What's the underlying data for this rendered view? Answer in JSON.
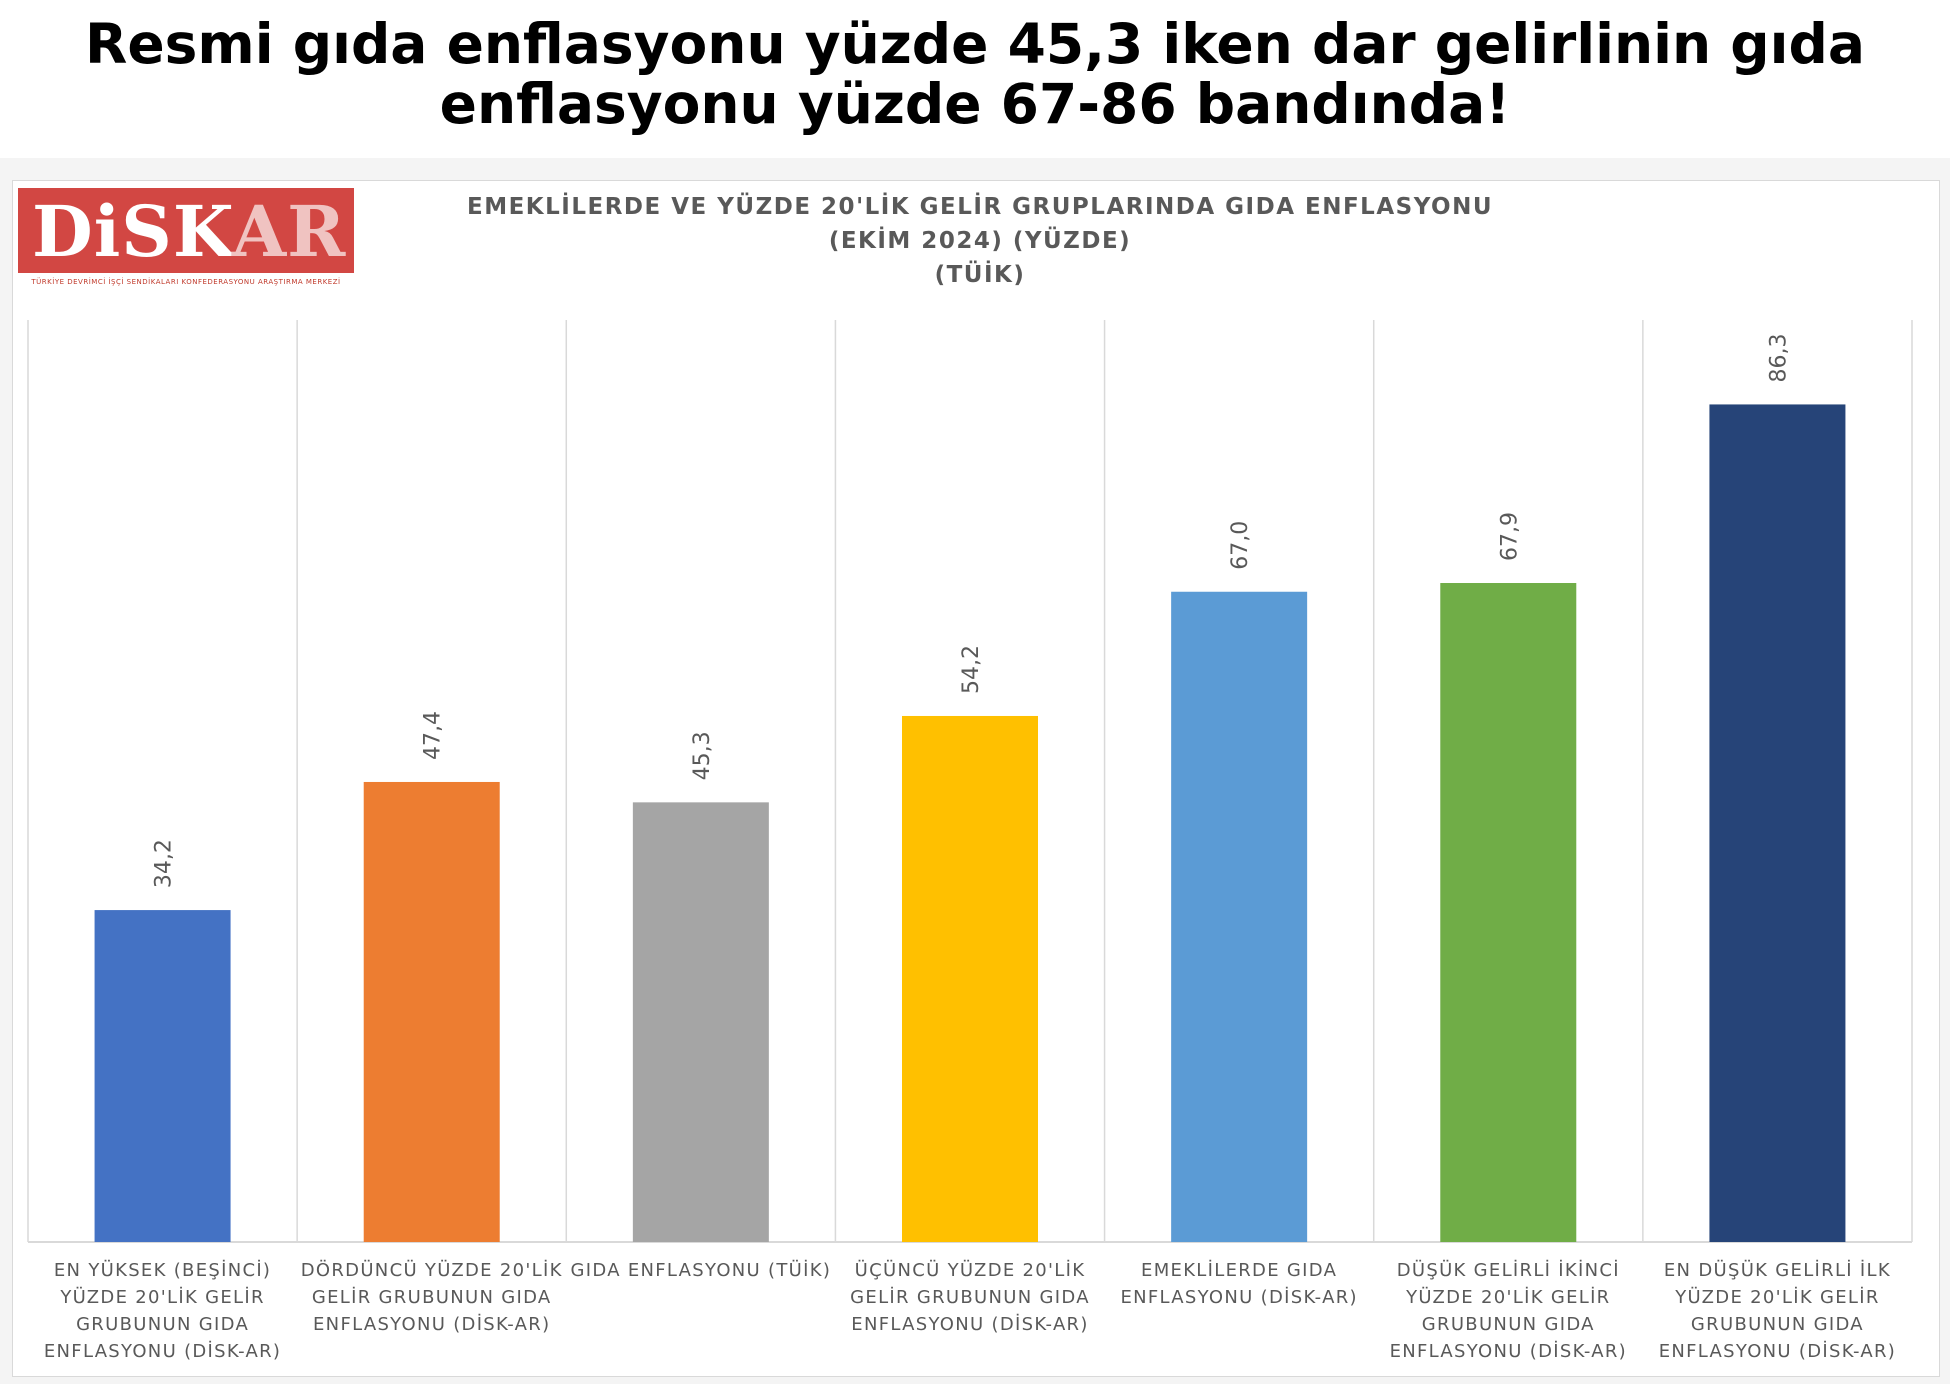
{
  "headline": {
    "line1": "Resmi gıda enflasyonu yüzde 45,3 iken dar gelirlinin gıda",
    "line2": "enflasyonu yüzde 67-86 bandında!"
  },
  "logo": {
    "main_text": "DiSK",
    "accent_text": "AR",
    "subtitle": "TÜRKİYE DEVRİMCİ İŞÇİ SENDİKALARI KONFEDERASYONU ARAŞTIRMA MERKEZİ"
  },
  "chart_data": {
    "type": "bar",
    "title_lines": [
      "EMEKLİLERDE VE YÜZDE 20'LİK GELİR GRUPLARINDA GIDA ENFLASYONU",
      "(EKİM 2024) (YÜZDE)",
      "(TÜİK)"
    ],
    "categories": [
      [
        "EN YÜKSEK (BEŞİNCİ)",
        "YÜZDE 20'LİK GELİR",
        "GRUBUNUN GIDA",
        "ENFLASYONU (DİSK-AR)"
      ],
      [
        "DÖRDÜNCÜ YÜZDE 20'LİK",
        "GELİR GRUBUNUN GIDA",
        "ENFLASYONU (DİSK-AR)"
      ],
      [
        "GIDA ENFLASYONU (TÜİK)"
      ],
      [
        "ÜÇÜNCÜ YÜZDE 20'LİK",
        "GELİR GRUBUNUN GIDA",
        "ENFLASYONU (DİSK-AR)"
      ],
      [
        "EMEKLİLERDE GIDA",
        "ENFLASYONU (DİSK-AR)"
      ],
      [
        "DÜŞÜK GELİRLİ İKİNCİ",
        "YÜZDE 20'LİK GELİR",
        "GRUBUNUN GIDA",
        "ENFLASYONU (DİSK-AR)"
      ],
      [
        "EN DÜŞÜK GELİRLİ İLK",
        "YÜZDE 20'LİK GELİR",
        "GRUBUNUN GIDA",
        "ENFLASYONU (DİSK-AR)"
      ]
    ],
    "values": [
      34.2,
      47.4,
      45.3,
      54.2,
      67.0,
      67.9,
      86.3
    ],
    "value_labels": [
      "34,2",
      "47,4",
      "45,3",
      "54,2",
      "67,0",
      "67,9",
      "86,3"
    ],
    "colors": [
      "#4472c4",
      "#ed7d31",
      "#a5a5a5",
      "#ffc000",
      "#5b9bd5",
      "#70ad47",
      "#264478"
    ],
    "ylim": [
      0,
      95
    ],
    "grid": "vertical separators",
    "legend": "none"
  }
}
